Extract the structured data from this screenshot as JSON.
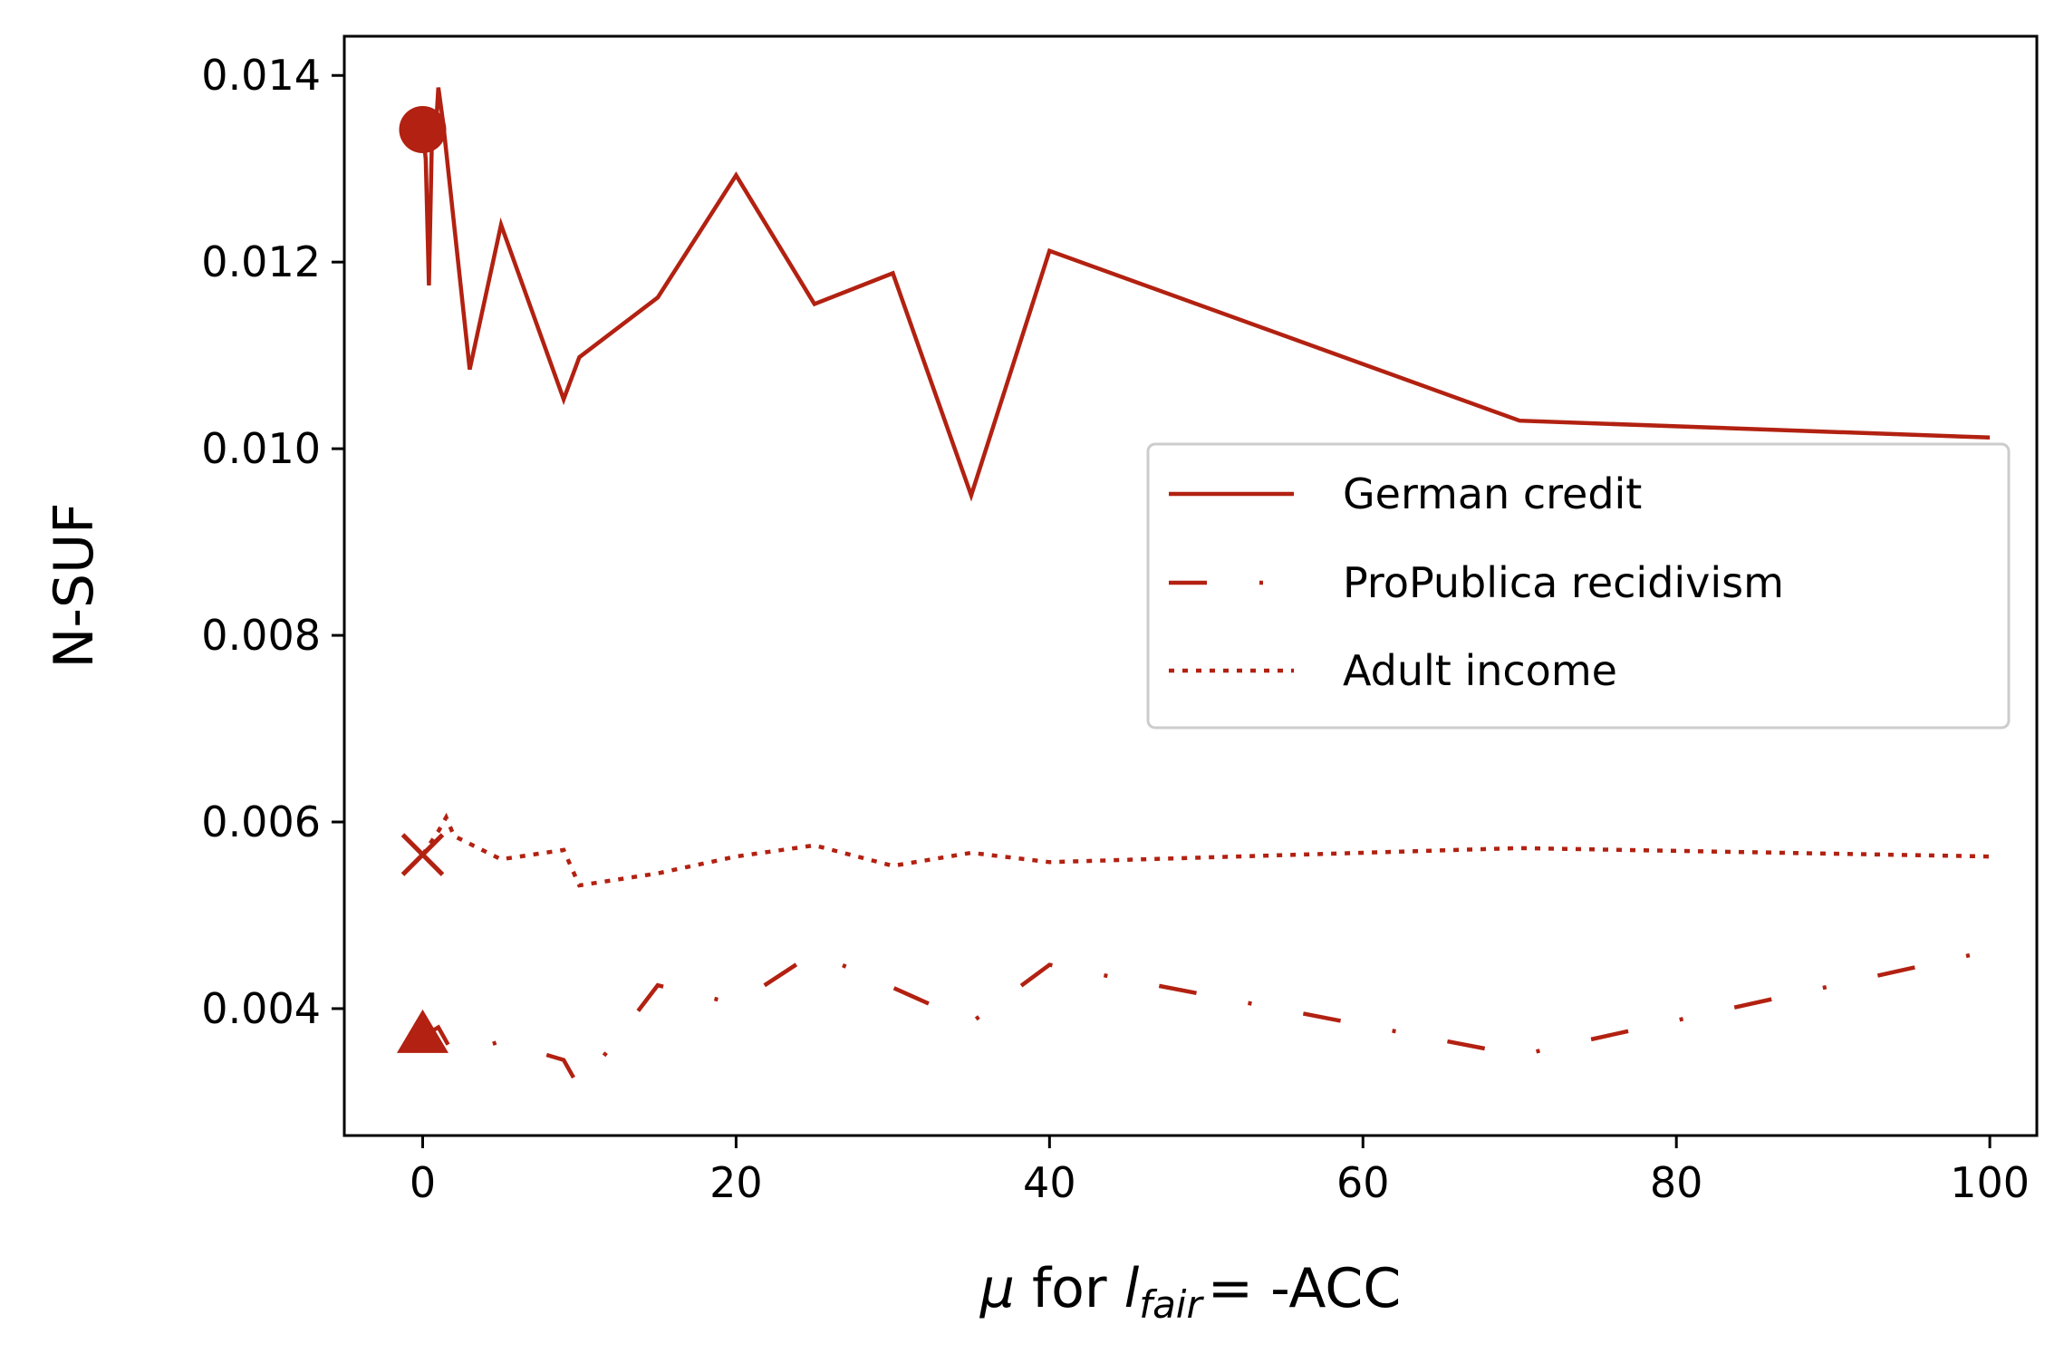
{
  "chart_data": {
    "type": "line",
    "xlabel": {
      "mu": "μ",
      "for": "for",
      "l": "l",
      "sub": "fair",
      "eq": "= -ACC"
    },
    "ylabel": "N-SUF",
    "xlim": [
      -5,
      103
    ],
    "ylim": [
      0.00264,
      0.01442
    ],
    "xticks": [
      0,
      20,
      40,
      60,
      80,
      100
    ],
    "yticks": [
      0.004,
      0.006,
      0.008,
      0.01,
      0.012,
      0.014
    ],
    "ytick_labels": [
      "0.004",
      "0.006",
      "0.008",
      "0.010",
      "0.012",
      "0.014"
    ],
    "xtick_labels": [
      "0",
      "20",
      "40",
      "60",
      "80",
      "100"
    ],
    "grid": false,
    "legend_position": "center-right",
    "color": "#b22111",
    "series": [
      {
        "name": "German credit",
        "style": "solid",
        "marker": "circle",
        "x": [
          0,
          0.2,
          0.4,
          0.6,
          0.8,
          1,
          1.3,
          3,
          5,
          9,
          10,
          15,
          20,
          25,
          30,
          35,
          40,
          70,
          100
        ],
        "y": [
          0.01342,
          0.0131,
          0.01175,
          0.01342,
          0.0133,
          0.01387,
          0.0135,
          0.01085,
          0.0124,
          0.01053,
          0.01098,
          0.01162,
          0.01293,
          0.01155,
          0.01188,
          0.0095,
          0.01212,
          0.0103,
          0.01012
        ]
      },
      {
        "name": "ProPublica recidivism",
        "style": "dashdot",
        "marker": "triangle",
        "x": [
          0,
          1,
          2,
          5,
          9,
          10,
          15,
          20,
          25,
          35,
          40,
          70,
          100
        ],
        "y": [
          0.0037,
          0.0038,
          0.0035,
          0.00365,
          0.00345,
          0.00315,
          0.00425,
          0.00405,
          0.0046,
          0.00385,
          0.00447,
          0.0035,
          0.00462
        ]
      },
      {
        "name": "Adult income",
        "style": "dotted",
        "marker": "x",
        "x": [
          0,
          1,
          1.5,
          2,
          5,
          9,
          10,
          15,
          20,
          25,
          30,
          35,
          40,
          70,
          100
        ],
        "y": [
          0.00565,
          0.0059,
          0.00605,
          0.00585,
          0.0056,
          0.0057,
          0.00532,
          0.00545,
          0.00563,
          0.00575,
          0.00553,
          0.00567,
          0.00557,
          0.00572,
          0.00563
        ]
      }
    ]
  }
}
